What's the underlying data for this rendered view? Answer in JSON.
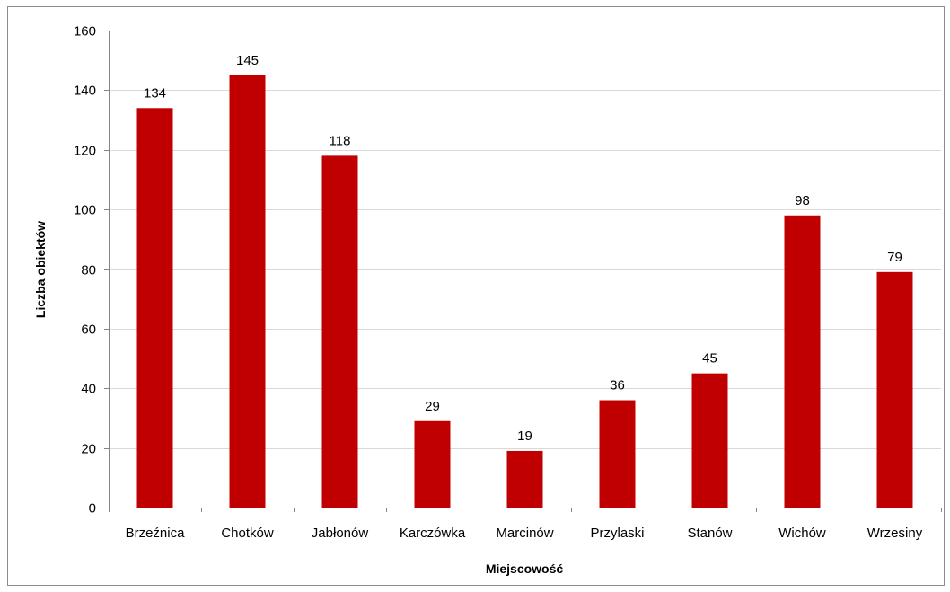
{
  "chart_data": {
    "type": "bar",
    "categories": [
      "Brzeźnica",
      "Chotków",
      "Jabłonów",
      "Karczówka",
      "Marcinów",
      "Przylaski",
      "Stanów",
      "Wichów",
      "Wrzesiny"
    ],
    "values": [
      134,
      145,
      118,
      29,
      19,
      36,
      45,
      98,
      79
    ],
    "data_labels": [
      "134",
      "145",
      "118",
      "29",
      "19",
      "36",
      "45",
      "98",
      "79"
    ],
    "title": "",
    "xlabel": "Miejscowość",
    "ylabel": "Liczba obiektów",
    "ylim": [
      0,
      160
    ],
    "y_ticks": [
      0,
      20,
      40,
      60,
      80,
      100,
      120,
      140,
      160
    ],
    "y_tick_labels": [
      "0",
      "20",
      "40",
      "60",
      "80",
      "100",
      "120",
      "140",
      "160"
    ],
    "grid": true,
    "legend": "none",
    "colors": {
      "bar": "#c00000",
      "grid": "#d9d9d9",
      "axis": "#868686"
    }
  }
}
